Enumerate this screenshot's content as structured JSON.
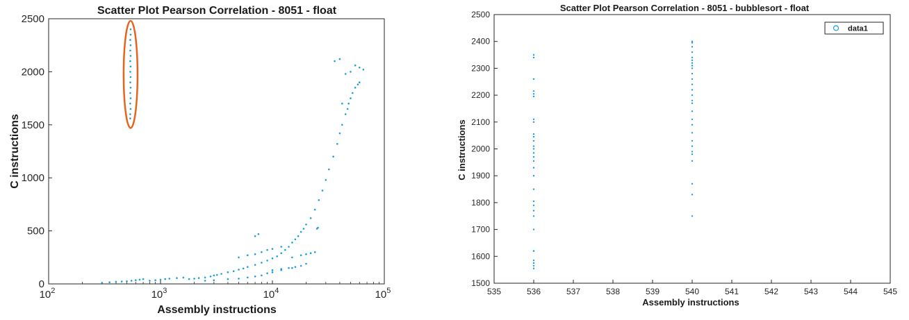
{
  "colors": {
    "marker": "#1a9fd9",
    "highlight": "#e8641c",
    "axis": "#262626"
  },
  "chart_data": [
    {
      "type": "scatter",
      "title": "Scatter Plot Pearson Correlation - 8051 - float",
      "xlabel": "Assembly instructions",
      "ylabel": "C instructions",
      "xscale": "log",
      "xlim": [
        100,
        100000
      ],
      "ylim": [
        0,
        2500
      ],
      "xticks": [
        100,
        1000,
        10000,
        100000
      ],
      "xtick_labels": [
        {
          "base": "10",
          "exp": "2"
        },
        {
          "base": "10",
          "exp": "3"
        },
        {
          "base": "10",
          "exp": "4"
        },
        {
          "base": "10",
          "exp": "5"
        }
      ],
      "yticks": [
        0,
        500,
        1000,
        1500,
        2000,
        2500
      ],
      "ytick_labels": [
        "0",
        "500",
        "1000",
        "1500",
        "2000",
        "2500"
      ],
      "grid": false,
      "legend": null,
      "annotation": {
        "shape": "ellipse",
        "color": "#e8641c",
        "x_center": 540,
        "y_range": [
          1470,
          2480
        ]
      },
      "series": [
        {
          "color": "#1a9fd9",
          "points": [
            [
              536,
              1560
            ],
            [
              536,
              1600
            ],
            [
              540,
              1650
            ],
            [
              536,
              1700
            ],
            [
              540,
              1750
            ],
            [
              536,
              1800
            ],
            [
              540,
              1850
            ],
            [
              536,
              1900
            ],
            [
              540,
              1950
            ],
            [
              536,
              2000
            ],
            [
              540,
              2050
            ],
            [
              536,
              2100
            ],
            [
              540,
              2150
            ],
            [
              536,
              2200
            ],
            [
              540,
              2250
            ],
            [
              536,
              2300
            ],
            [
              540,
              2350
            ],
            [
              540,
              2400
            ],
            [
              300,
              10
            ],
            [
              350,
              15
            ],
            [
              400,
              20
            ],
            [
              450,
              22
            ],
            [
              500,
              25
            ],
            [
              550,
              30
            ],
            [
              600,
              35
            ],
            [
              650,
              40
            ],
            [
              700,
              45
            ],
            [
              800,
              30
            ],
            [
              900,
              35
            ],
            [
              1000,
              40
            ],
            [
              1100,
              45
            ],
            [
              1200,
              50
            ],
            [
              1400,
              55
            ],
            [
              1600,
              60
            ],
            [
              1800,
              45
            ],
            [
              2000,
              50
            ],
            [
              2200,
              55
            ],
            [
              2500,
              60
            ],
            [
              2800,
              70
            ],
            [
              3000,
              80
            ],
            [
              3200,
              85
            ],
            [
              3500,
              95
            ],
            [
              4000,
              110
            ],
            [
              4500,
              120
            ],
            [
              5000,
              135
            ],
            [
              5500,
              145
            ],
            [
              6000,
              160
            ],
            [
              7000,
              180
            ],
            [
              8000,
              200
            ],
            [
              9000,
              220
            ],
            [
              10000,
              240
            ],
            [
              11000,
              260
            ],
            [
              12000,
              290
            ],
            [
              13000,
              320
            ],
            [
              14000,
              350
            ],
            [
              15000,
              390
            ],
            [
              16000,
              420
            ],
            [
              17000,
              450
            ],
            [
              18000,
              490
            ],
            [
              19000,
              520
            ],
            [
              20000,
              560
            ],
            [
              22000,
              620
            ],
            [
              24000,
              700
            ],
            [
              26000,
              790
            ],
            [
              28000,
              880
            ],
            [
              30000,
              980
            ],
            [
              32000,
              1080
            ],
            [
              35000,
              1200
            ],
            [
              38000,
              1320
            ],
            [
              40000,
              1420
            ],
            [
              42000,
              1500
            ],
            [
              45000,
              1600
            ],
            [
              48000,
              1700
            ],
            [
              50000,
              1750
            ],
            [
              52000,
              1800
            ],
            [
              55000,
              1850
            ],
            [
              58000,
              1880
            ],
            [
              60000,
              1900
            ],
            [
              2500,
              30
            ],
            [
              3000,
              35
            ],
            [
              4000,
              45
            ],
            [
              5000,
              50
            ],
            [
              6000,
              60
            ],
            [
              7000,
              70
            ],
            [
              8000,
              80
            ],
            [
              9000,
              100
            ],
            [
              10000,
              110
            ],
            [
              12000,
              130
            ],
            [
              15000,
              150
            ],
            [
              18000,
              170
            ],
            [
              20000,
              190
            ],
            [
              5000,
              250
            ],
            [
              6000,
              270
            ],
            [
              7000,
              280
            ],
            [
              8000,
              300
            ],
            [
              9000,
              320
            ],
            [
              10000,
              330
            ],
            [
              12000,
              350
            ],
            [
              15000,
              250
            ],
            [
              18000,
              270
            ],
            [
              20000,
              280
            ],
            [
              22000,
              290
            ],
            [
              24000,
              300
            ],
            [
              10000,
              130
            ],
            [
              12000,
              140
            ],
            [
              14000,
              150
            ],
            [
              16000,
              160
            ],
            [
              7000,
              450
            ],
            [
              7500,
              470
            ],
            [
              25000,
              520
            ],
            [
              25500,
              530
            ],
            [
              36000,
              2100
            ],
            [
              40000,
              2120
            ],
            [
              45000,
              1980
            ],
            [
              50000,
              2000
            ],
            [
              55000,
              2060
            ],
            [
              60000,
              2040
            ],
            [
              65000,
              2020
            ],
            [
              42000,
              1700
            ],
            [
              47000,
              1650
            ]
          ]
        }
      ]
    },
    {
      "type": "scatter",
      "title": "Scatter Plot Pearson Correlation - 8051 - bubblesort - float",
      "xlabel": "Assembly instructions",
      "ylabel": "C instructions",
      "xlim": [
        535,
        545
      ],
      "ylim": [
        1500,
        2500
      ],
      "xticks": [
        535,
        536,
        537,
        538,
        539,
        540,
        541,
        542,
        543,
        544,
        545
      ],
      "xtick_labels": [
        "535",
        "536",
        "537",
        "538",
        "539",
        "540",
        "541",
        "542",
        "543",
        "544",
        "545"
      ],
      "yticks": [
        1500,
        1600,
        1700,
        1800,
        1900,
        2000,
        2100,
        2200,
        2300,
        2400,
        2500
      ],
      "ytick_labels": [
        "1500",
        "1600",
        "1700",
        "1800",
        "1900",
        "2000",
        "2100",
        "2200",
        "2300",
        "2400",
        "2500"
      ],
      "grid": false,
      "legend": {
        "position": "top-right",
        "entries": [
          "data1"
        ]
      },
      "series": [
        {
          "name": "data1",
          "color": "#1a9fd9",
          "x": [
            536,
            536,
            536,
            536,
            536,
            536,
            536,
            536,
            536,
            536,
            536,
            536,
            536,
            536,
            536,
            536,
            536,
            536,
            536,
            536,
            536,
            536,
            536,
            536,
            536,
            536,
            536,
            536,
            536,
            536,
            540,
            540,
            540,
            540,
            540,
            540,
            540,
            540,
            540,
            540,
            540,
            540,
            540,
            540,
            540,
            540,
            540,
            540,
            540,
            540,
            540,
            540,
            540,
            540,
            540,
            540,
            540,
            540
          ],
          "y": [
            1555,
            1565,
            1575,
            1585,
            1620,
            1700,
            1750,
            1770,
            1790,
            1805,
            1850,
            1900,
            1930,
            1955,
            1970,
            1985,
            2000,
            2010,
            2030,
            2045,
            2055,
            2100,
            2110,
            2195,
            2205,
            2215,
            2260,
            2340,
            2350,
            1620,
            1750,
            1830,
            1870,
            1955,
            1980,
            1990,
            2010,
            2030,
            2060,
            2090,
            2110,
            2140,
            2170,
            2180,
            2200,
            2220,
            2240,
            2260,
            2280,
            2300,
            2310,
            2320,
            2330,
            2340,
            2360,
            2380,
            2395,
            2400
          ]
        }
      ]
    }
  ]
}
